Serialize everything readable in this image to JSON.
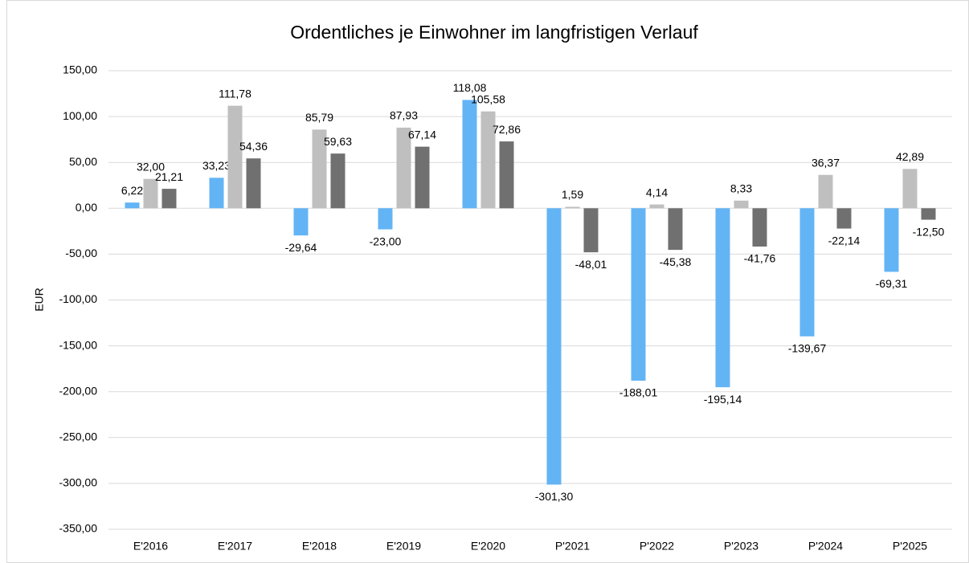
{
  "chart_data": {
    "type": "bar",
    "title": "Ordentliches je Einwohner im langfristigen Verlauf",
    "ylabel": "EUR",
    "categories": [
      "E'2016",
      "E'2017",
      "E'2018",
      "E'2019",
      "E'2020",
      "P'2021",
      "P'2022",
      "P'2023",
      "P'2024",
      "P'2025"
    ],
    "series": [
      {
        "color": "#63b4f5",
        "values": [
          6.22,
          33.23,
          -29.64,
          -23.0,
          118.08,
          -301.3,
          -188.01,
          -195.14,
          -139.67,
          -69.31
        ],
        "value_labels": [
          "6,22",
          "33,23",
          "-29,64",
          "-23,00",
          "118,08",
          "-301,30",
          "-188,01",
          "-195,14",
          "-139,67",
          "-69,31"
        ]
      },
      {
        "color": "#bfbfbf",
        "values": [
          32.0,
          111.78,
          85.79,
          87.93,
          105.58,
          1.59,
          4.14,
          8.33,
          36.37,
          42.89
        ],
        "value_labels": [
          "32,00",
          "111,78",
          "85,79",
          "87,93",
          "105,58",
          "1,59",
          "4,14",
          "8,33",
          "36,37",
          "42,89"
        ]
      },
      {
        "color": "#707070",
        "values": [
          21.21,
          54.36,
          59.63,
          67.14,
          72.86,
          -48.01,
          -45.38,
          -41.76,
          -22.14,
          -12.5
        ],
        "value_labels": [
          "21,21",
          "54,36",
          "59,63",
          "67,14",
          "72,86",
          "-48,01",
          "-45,38",
          "-41,76",
          "-22,14",
          "-12,50"
        ]
      }
    ],
    "ylim": [
      -350,
      150
    ],
    "yticks": [
      {
        "value": 150,
        "label": "150,00"
      },
      {
        "value": 100,
        "label": "100,00"
      },
      {
        "value": 50,
        "label": "50,00"
      },
      {
        "value": 0,
        "label": "0,00"
      },
      {
        "value": -50,
        "label": "-50,00"
      },
      {
        "value": -100,
        "label": "-100,00"
      },
      {
        "value": -150,
        "label": "-150,00"
      },
      {
        "value": -200,
        "label": "-200,00"
      },
      {
        "value": -250,
        "label": "-250,00"
      },
      {
        "value": -300,
        "label": "-300,00"
      },
      {
        "value": -350,
        "label": "-350,00"
      }
    ],
    "grid": true
  }
}
